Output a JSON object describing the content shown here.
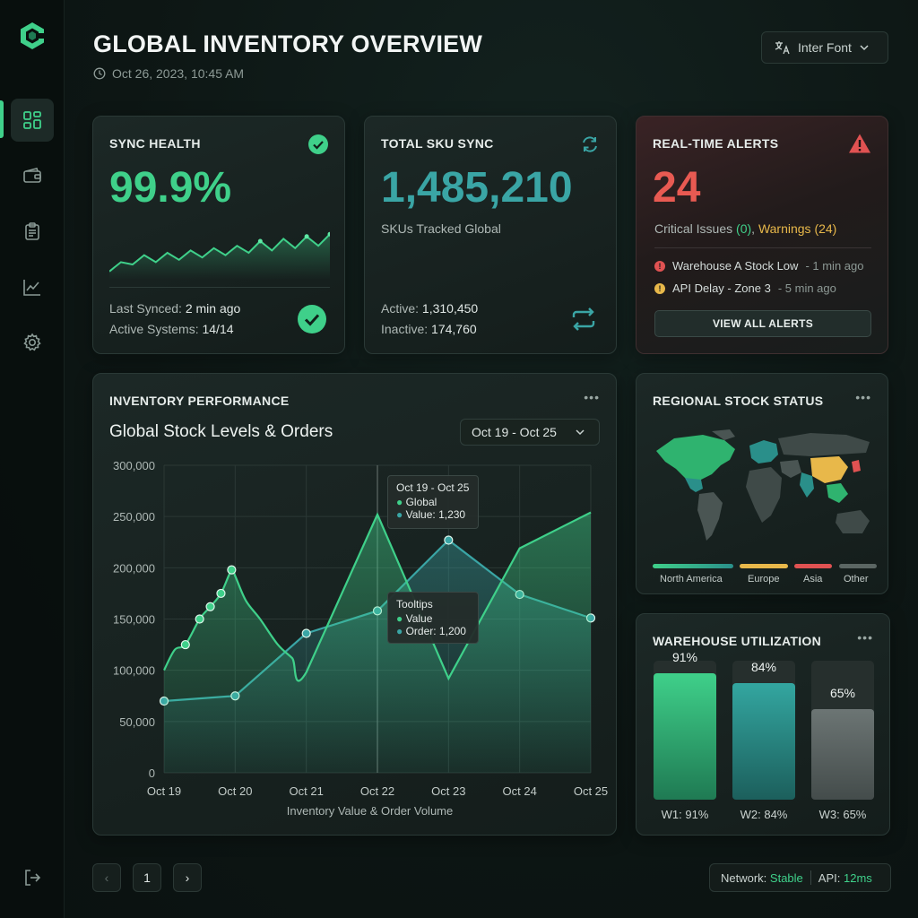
{
  "header": {
    "title": "GLOBAL INVENTORY OVERVIEW",
    "timestamp": "Oct 26, 2023, 10:45 AM",
    "font_select": "Inter Font"
  },
  "sidebar": {
    "items": [
      {
        "icon": "dashboard-icon",
        "active": true
      },
      {
        "icon": "wallet-icon",
        "active": false
      },
      {
        "icon": "clipboard-icon",
        "active": false
      },
      {
        "icon": "analytics-icon",
        "active": false
      },
      {
        "icon": "settings-icon",
        "active": false
      }
    ],
    "logout_icon": "logout-icon"
  },
  "sync_health": {
    "title": "SYNC HEALTH",
    "value": "99.9%",
    "last_synced_label": "Last Synced:",
    "last_synced_value": "2 min ago",
    "active_systems_label": "Active Systems:",
    "active_systems_value": "14/14",
    "sparkline": [
      0.1,
      0.3,
      0.25,
      0.45,
      0.3,
      0.5,
      0.35,
      0.55,
      0.4,
      0.6,
      0.45,
      0.65,
      0.5,
      0.75,
      0.55,
      0.8,
      0.6,
      0.85,
      0.65,
      0.9
    ]
  },
  "total_sku": {
    "title": "TOTAL SKU SYNC",
    "value": "1,485,210",
    "subtitle": "SKUs Tracked Global",
    "active_label": "Active:",
    "active_value": "1,310,450",
    "inactive_label": "Inactive:",
    "inactive_value": "174,760"
  },
  "alerts": {
    "title": "REAL-TIME ALERTS",
    "count": "24",
    "critical_text": "Critical Issues",
    "critical_count": "(0)",
    "warnings_text": "Warnings (24)",
    "items": [
      {
        "text": "Warehouse A Stock Low",
        "time": "- 1 min ago",
        "level": "error"
      },
      {
        "text": "API Delay - Zone 3",
        "time": "- 5 min ago",
        "level": "warning"
      }
    ],
    "button": "VIEW ALL ALERTS"
  },
  "performance": {
    "title": "INVENTORY PERFORMANCE",
    "chart_title": "Global Stock Levels & Orders",
    "range": "Oct 19 - Oct 25",
    "tooltip1": {
      "title": "Oct 19 - Oct 25",
      "line1": "Global",
      "line2": "Value: 1,230"
    },
    "tooltip2": {
      "title": "Tooltips",
      "line1": "Value",
      "line2": "Order: 1,200"
    }
  },
  "chart_data": {
    "type": "area",
    "title": "Global Stock Levels & Orders",
    "xlabel": "Inventory Value & Order Volume",
    "ylabel": "",
    "categories": [
      "Oct 19",
      "Oct 20",
      "Oct 21",
      "Oct 22",
      "Oct 23",
      "Oct 24",
      "Oct 25"
    ],
    "y_ticks": [
      "300,000",
      "250,000",
      "200,000",
      "150,000",
      "100,000",
      "50,000",
      "0"
    ],
    "ylim": [
      0,
      300000
    ],
    "grid": true,
    "series": [
      {
        "color": "#3fd08a",
        "x": [
          0,
          0.15,
          0.3,
          0.5,
          0.65,
          0.8,
          0.95,
          1.0,
          1.15,
          1.35,
          1.6,
          1.8,
          2.0,
          3.0,
          4.0,
          5.0,
          6.0
        ],
        "values": [
          100000,
          120000,
          125000,
          150000,
          162000,
          175000,
          198000,
          192000,
          168000,
          150000,
          125000,
          112000,
          98000,
          252000,
          92000,
          219000,
          254000
        ],
        "markers": [
          2,
          3,
          4,
          5,
          6
        ]
      },
      {
        "color": "#3aa5a5",
        "x": [
          0,
          1,
          2,
          3,
          4,
          5,
          6
        ],
        "values": [
          70000,
          75000,
          136000,
          158000,
          227000,
          174000,
          151000
        ],
        "markers": [
          0,
          1,
          2,
          3,
          4,
          5,
          6
        ]
      }
    ]
  },
  "regional": {
    "title": "REGIONAL STOCK STATUS",
    "legend": [
      {
        "label": "North America",
        "color": "#3fd08a"
      },
      {
        "label": "Europe",
        "color": "#e8b84a"
      },
      {
        "label": "Asia",
        "color": "#e05252"
      },
      {
        "label": "Other",
        "color": "#5b6663"
      }
    ]
  },
  "warehouse": {
    "title": "WAREHOUSE UTILIZATION",
    "items": [
      {
        "pct": "91%",
        "label": "W1: 91%",
        "value": 0.91,
        "color": "#2fb36f"
      },
      {
        "pct": "84%",
        "label": "W2: 84%",
        "value": 0.84,
        "color": "#2a8f8a"
      },
      {
        "pct": "65%",
        "label": "W3: 65%",
        "value": 0.65,
        "color": "#5f6868"
      }
    ]
  },
  "pagination": {
    "prev": "‹",
    "page": "1",
    "next": "›"
  },
  "status": {
    "network_label": "Network:",
    "network_value": "Stable",
    "api_label": "API:",
    "api_value": "12ms"
  }
}
